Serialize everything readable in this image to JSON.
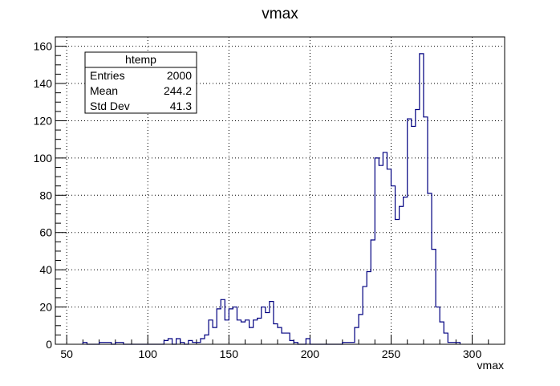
{
  "chart_data": {
    "type": "bar",
    "title": "vmax",
    "xlabel": "vmax",
    "ylabel": "",
    "xlim": [
      43,
      320
    ],
    "ylim": [
      0,
      165
    ],
    "grid": true,
    "bin_width": 2.5,
    "x_ticks": [
      50,
      100,
      150,
      200,
      250,
      300
    ],
    "y_ticks": [
      0,
      20,
      40,
      60,
      80,
      100,
      120,
      140,
      160
    ],
    "line_color": "#000080",
    "stats_box": {
      "title": "htemp",
      "position": "top-left",
      "rows": [
        {
          "label": "Entries",
          "value": "2000"
        },
        {
          "label": "Mean",
          "value": "244.2"
        },
        {
          "label": "Std Dev",
          "value": "41.3"
        }
      ]
    },
    "bins": [
      {
        "x": 60.0,
        "y": 1
      },
      {
        "x": 62.5,
        "y": 0
      },
      {
        "x": 65.0,
        "y": 0
      },
      {
        "x": 67.5,
        "y": 0
      },
      {
        "x": 70.0,
        "y": 1
      },
      {
        "x": 72.5,
        "y": 1
      },
      {
        "x": 75.0,
        "y": 1
      },
      {
        "x": 77.5,
        "y": 0
      },
      {
        "x": 80.0,
        "y": 1
      },
      {
        "x": 82.5,
        "y": 1
      },
      {
        "x": 85.0,
        "y": 0
      },
      {
        "x": 87.5,
        "y": 0
      },
      {
        "x": 90.0,
        "y": 0
      },
      {
        "x": 92.5,
        "y": 0
      },
      {
        "x": 95.0,
        "y": 0
      },
      {
        "x": 97.5,
        "y": 0
      },
      {
        "x": 100.0,
        "y": 0
      },
      {
        "x": 102.5,
        "y": 0
      },
      {
        "x": 105.0,
        "y": 0
      },
      {
        "x": 107.5,
        "y": 0
      },
      {
        "x": 110.0,
        "y": 2
      },
      {
        "x": 112.5,
        "y": 3
      },
      {
        "x": 115.0,
        "y": 0
      },
      {
        "x": 117.5,
        "y": 3
      },
      {
        "x": 120.0,
        "y": 1
      },
      {
        "x": 122.5,
        "y": 0
      },
      {
        "x": 125.0,
        "y": 2
      },
      {
        "x": 127.5,
        "y": 1
      },
      {
        "x": 130.0,
        "y": 1
      },
      {
        "x": 132.5,
        "y": 3
      },
      {
        "x": 135.0,
        "y": 5
      },
      {
        "x": 137.5,
        "y": 13
      },
      {
        "x": 140.0,
        "y": 9
      },
      {
        "x": 142.5,
        "y": 19
      },
      {
        "x": 145.0,
        "y": 24
      },
      {
        "x": 147.5,
        "y": 13
      },
      {
        "x": 150.0,
        "y": 19
      },
      {
        "x": 152.5,
        "y": 20
      },
      {
        "x": 155.0,
        "y": 13
      },
      {
        "x": 157.5,
        "y": 12
      },
      {
        "x": 160.0,
        "y": 13
      },
      {
        "x": 162.5,
        "y": 9
      },
      {
        "x": 165.0,
        "y": 13
      },
      {
        "x": 167.5,
        "y": 14
      },
      {
        "x": 170.0,
        "y": 20
      },
      {
        "x": 172.5,
        "y": 17
      },
      {
        "x": 175.0,
        "y": 23
      },
      {
        "x": 177.5,
        "y": 11
      },
      {
        "x": 180.0,
        "y": 9
      },
      {
        "x": 182.5,
        "y": 6
      },
      {
        "x": 185.0,
        "y": 6
      },
      {
        "x": 187.5,
        "y": 2
      },
      {
        "x": 190.0,
        "y": 1
      },
      {
        "x": 192.5,
        "y": 0
      },
      {
        "x": 195.0,
        "y": 0
      },
      {
        "x": 197.5,
        "y": 3
      },
      {
        "x": 200.0,
        "y": 0
      },
      {
        "x": 202.5,
        "y": 0
      },
      {
        "x": 205.0,
        "y": 0
      },
      {
        "x": 207.5,
        "y": 0
      },
      {
        "x": 210.0,
        "y": 0
      },
      {
        "x": 212.5,
        "y": 0
      },
      {
        "x": 215.0,
        "y": 0
      },
      {
        "x": 217.5,
        "y": 0
      },
      {
        "x": 220.0,
        "y": 1
      },
      {
        "x": 222.5,
        "y": 1
      },
      {
        "x": 225.0,
        "y": 1
      },
      {
        "x": 227.5,
        "y": 9
      },
      {
        "x": 230.0,
        "y": 16
      },
      {
        "x": 232.5,
        "y": 31
      },
      {
        "x": 235.0,
        "y": 39
      },
      {
        "x": 237.5,
        "y": 56
      },
      {
        "x": 240.0,
        "y": 100
      },
      {
        "x": 242.5,
        "y": 96
      },
      {
        "x": 245.0,
        "y": 103
      },
      {
        "x": 247.5,
        "y": 94
      },
      {
        "x": 250.0,
        "y": 85
      },
      {
        "x": 252.5,
        "y": 67
      },
      {
        "x": 255.0,
        "y": 74
      },
      {
        "x": 257.5,
        "y": 79
      },
      {
        "x": 260.0,
        "y": 121
      },
      {
        "x": 262.5,
        "y": 117
      },
      {
        "x": 265.0,
        "y": 126
      },
      {
        "x": 267.5,
        "y": 156
      },
      {
        "x": 270.0,
        "y": 122
      },
      {
        "x": 272.5,
        "y": 81
      },
      {
        "x": 275.0,
        "y": 51
      },
      {
        "x": 277.5,
        "y": 20
      },
      {
        "x": 280.0,
        "y": 12
      },
      {
        "x": 282.5,
        "y": 6
      },
      {
        "x": 285.0,
        "y": 1
      },
      {
        "x": 287.5,
        "y": 1
      },
      {
        "x": 290.0,
        "y": 1
      }
    ]
  }
}
